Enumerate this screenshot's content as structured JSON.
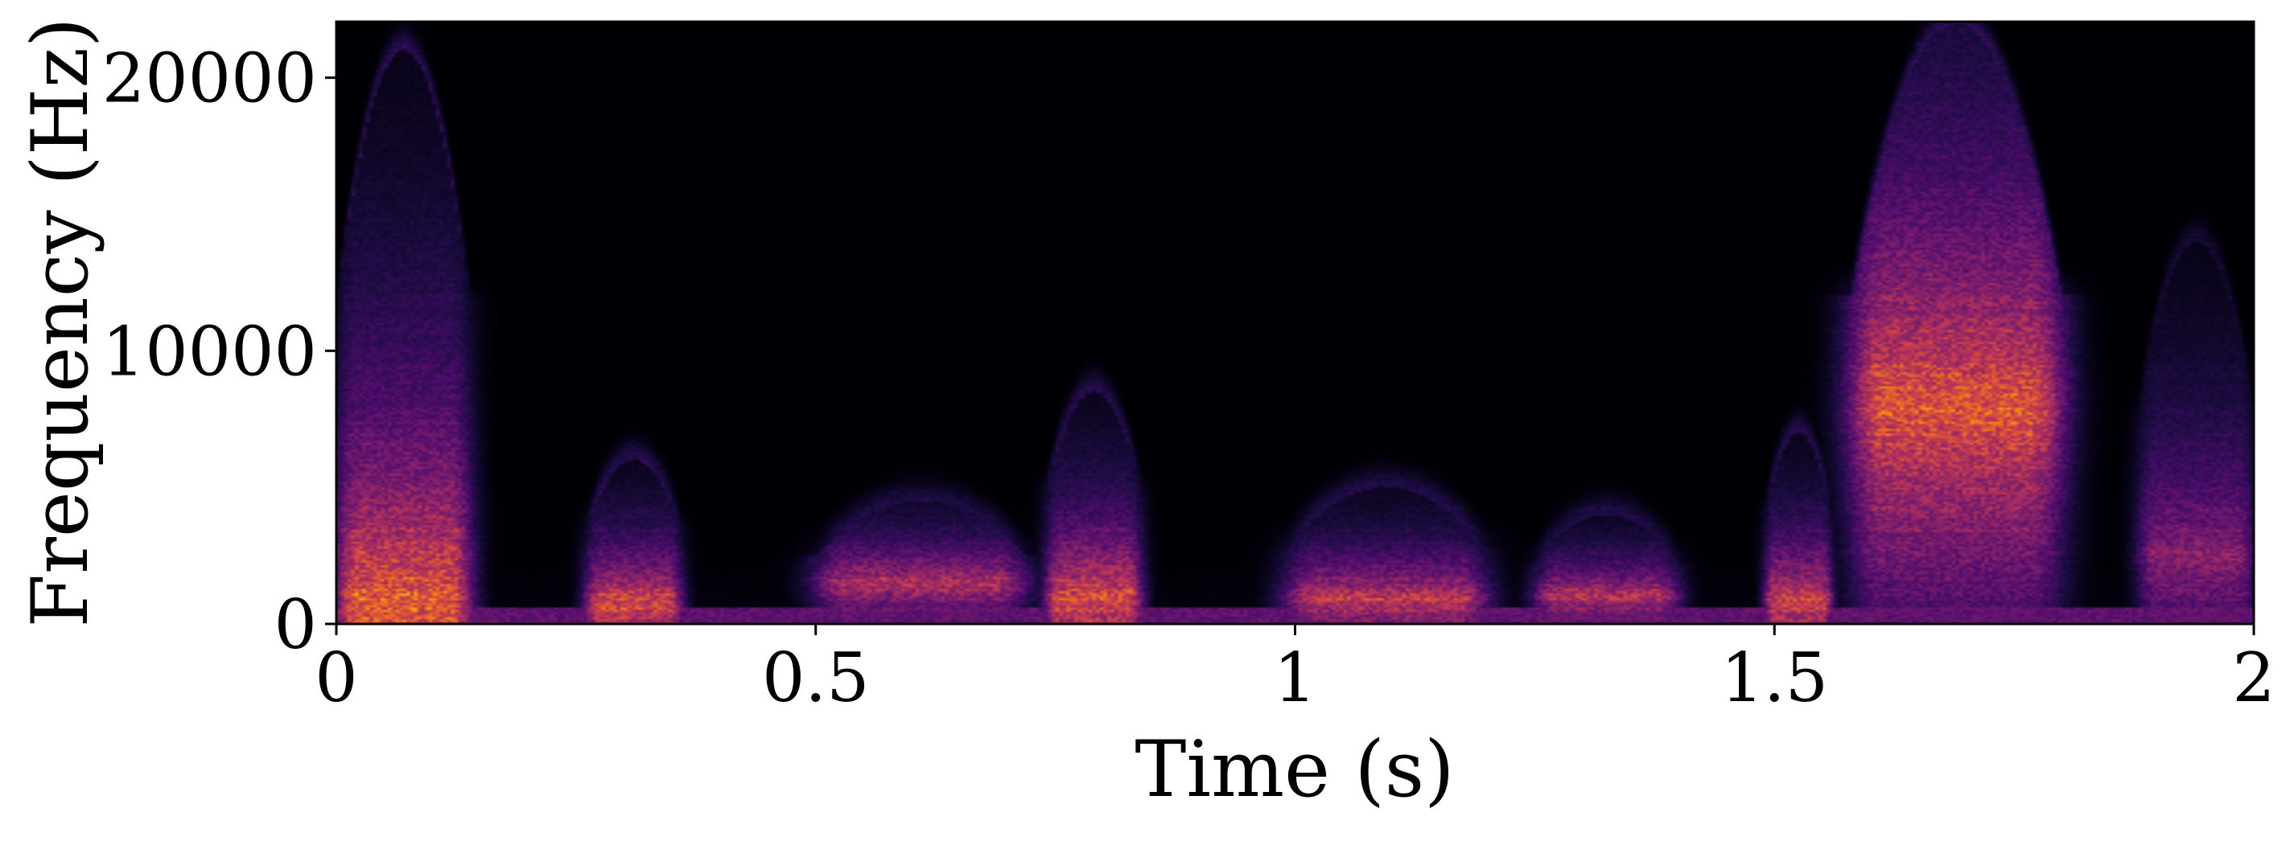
{
  "chart_data": {
    "type": "heatmap",
    "subtype": "spectrogram",
    "title": "",
    "xlabel": "Time (s)",
    "ylabel": "Frequency (Hz)",
    "xlim": [
      0,
      2
    ],
    "ylim": [
      0,
      22050
    ],
    "x_ticks": [
      0,
      0.5,
      1,
      1.5,
      2
    ],
    "x_tick_labels": [
      "0",
      "0.5",
      "1",
      "1.5",
      "2"
    ],
    "y_ticks": [
      0,
      10000,
      20000
    ],
    "y_tick_labels": [
      "0",
      "10000",
      "20000"
    ],
    "colormap": "magma",
    "colormap_stops": [
      "#000004",
      "#1b0c41",
      "#4a0c6b",
      "#781c6d",
      "#a52c60",
      "#cf4446",
      "#ed6925",
      "#fb9b06",
      "#f7d13d",
      "#fcffa4"
    ],
    "grid": false,
    "colorbar": false,
    "energy_events": [
      {
        "t_start": 0.0,
        "t_end": 0.14,
        "peak_hz": 800,
        "extent_hz": 21000,
        "intensity": 0.85
      },
      {
        "t_start": 0.26,
        "t_end": 0.36,
        "peak_hz": 700,
        "extent_hz": 6000,
        "intensity": 0.8
      },
      {
        "t_start": 0.5,
        "t_end": 0.72,
        "peak_hz": 1500,
        "extent_hz": 4500,
        "intensity": 0.65
      },
      {
        "t_start": 0.74,
        "t_end": 0.84,
        "peak_hz": 900,
        "extent_hz": 8500,
        "intensity": 0.8
      },
      {
        "t_start": 0.99,
        "t_end": 1.2,
        "peak_hz": 900,
        "extent_hz": 5000,
        "intensity": 0.7
      },
      {
        "t_start": 1.25,
        "t_end": 1.4,
        "peak_hz": 1000,
        "extent_hz": 4000,
        "intensity": 0.65
      },
      {
        "t_start": 1.49,
        "t_end": 1.56,
        "peak_hz": 800,
        "extent_hz": 7000,
        "intensity": 0.75
      },
      {
        "t_start": 1.58,
        "t_end": 1.8,
        "peak_hz": 8000,
        "extent_hz": 22000,
        "intensity": 0.85
      },
      {
        "t_start": 1.88,
        "t_end": 2.0,
        "peak_hz": 2500,
        "extent_hz": 14000,
        "intensity": 0.5
      }
    ]
  }
}
